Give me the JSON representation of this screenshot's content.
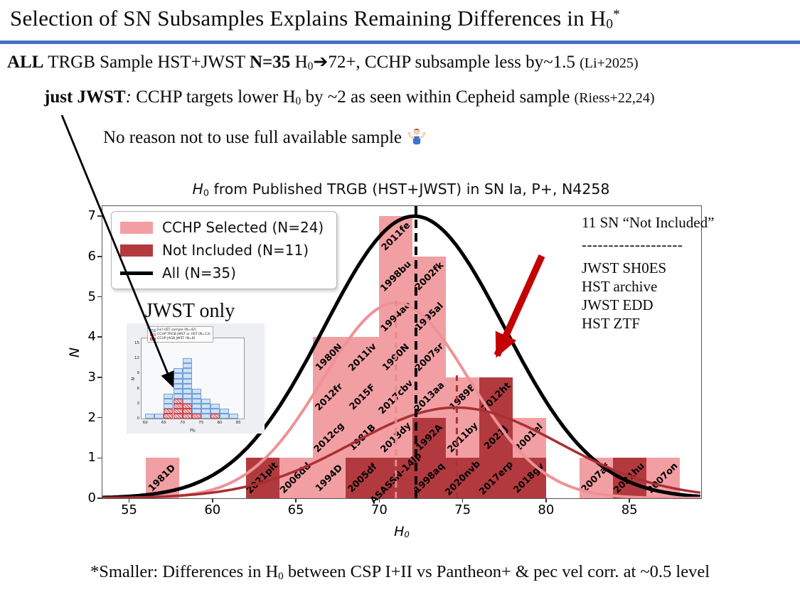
{
  "slide": {
    "accent_color": "#4472c4",
    "title": {
      "text": "Selection of SN Subsamples Explains Remaining Differences in ",
      "h": "H",
      "sub": "0",
      "star": "*"
    },
    "line1": {
      "b1": "ALL",
      "t1": " TRGB Sample HST+JWST ",
      "b2": "N=35",
      "t2": " H",
      "sub": "0",
      "arrow": "➔",
      "t3": "72+, CCHP subsample less by~1.5 ",
      "ref": "(Li+2025)"
    },
    "line2": {
      "b1": "just JWST",
      "colon": ":",
      "t1": " CCHP targets lower H",
      "sub": "0",
      "t2": " by ~2 as seen within Cepheid sample ",
      "ref": "(Riess+22,24)"
    },
    "line3": {
      "text": "No reason not to use full available sample"
    },
    "footnote": {
      "t1": "*Smaller: Differences in H",
      "sub": "0",
      "t2": " between CSP I+II vs Pantheon+ & pec vel corr. at ~0.5 level"
    }
  },
  "chart_data": {
    "type": "histogram",
    "title": {
      "h": "H",
      "sub": "0",
      "rest": " from Published TRGB (HST+JWST) in SN Ia, P+, N4258"
    },
    "xlabel": {
      "h": "H",
      "sub": "0"
    },
    "ylabel": "N",
    "xlim": [
      53.4,
      89.3
    ],
    "ylim": [
      0,
      7.25
    ],
    "xticks": [
      55,
      60,
      65,
      70,
      75,
      80,
      85
    ],
    "yticks": [
      0,
      1,
      2,
      3,
      4,
      5,
      6,
      7
    ],
    "bin_width": 2,
    "grid": false,
    "legend_position": "upper-left",
    "colors": {
      "cchp": "#f29fa3",
      "not_included": "#b23a3e",
      "all_curve": "#000000",
      "cchp_curve": "#ee9297",
      "not_included_curve": "#aa2f33",
      "arrow_red": "#c40000"
    },
    "legend": [
      {
        "label": "CCHP Selected (N=24)",
        "swatch": "cchp"
      },
      {
        "label": "Not Included (N=11)",
        "swatch": "not_included"
      },
      {
        "label": "All (N=35)",
        "swatch": "all_curve"
      }
    ],
    "bins": [
      {
        "x0": 56,
        "cells": [
          {
            "label": "1981D",
            "group": "cchp"
          }
        ]
      },
      {
        "x0": 62,
        "cells": [
          {
            "label": "2021pit",
            "group": "not_included"
          }
        ]
      },
      {
        "x0": 64,
        "cells": [
          {
            "label": "2006dd",
            "group": "cchp"
          }
        ]
      },
      {
        "x0": 66,
        "cells": [
          {
            "label": "1994D",
            "group": "cchp"
          },
          {
            "label": "2012cg",
            "group": "cchp"
          },
          {
            "label": "2012fr",
            "group": "cchp"
          },
          {
            "label": "1980N",
            "group": "cchp"
          }
        ]
      },
      {
        "x0": 68,
        "cells": [
          {
            "label": "2005df",
            "group": "not_included"
          },
          {
            "label": "1981B",
            "group": "cchp"
          },
          {
            "label": "2015F",
            "group": "cchp"
          },
          {
            "label": "2011iv",
            "group": "cchp"
          }
        ]
      },
      {
        "x0": 70,
        "cells": [
          {
            "label": "ASASSN-14lp",
            "group": "not_included"
          },
          {
            "label": "2013dy",
            "group": "cchp"
          },
          {
            "label": "2017cbv",
            "group": "cchp"
          },
          {
            "label": "1990N",
            "group": "cchp"
          },
          {
            "label": "1994ae",
            "group": "cchp"
          },
          {
            "label": "1998bu",
            "group": "cchp"
          },
          {
            "label": "2011fe",
            "group": "cchp"
          }
        ]
      },
      {
        "x0": 72,
        "cells": [
          {
            "label": "1998aq",
            "group": "not_included"
          },
          {
            "label": "1992A",
            "group": "not_included"
          },
          {
            "label": "2013aa",
            "group": "cchp"
          },
          {
            "label": "2007sr",
            "group": "cchp"
          },
          {
            "label": "1995al",
            "group": "cchp"
          },
          {
            "label": "2002fk",
            "group": "cchp"
          }
        ]
      },
      {
        "x0": 74,
        "cells": [
          {
            "label": "2020nvb",
            "group": "not_included"
          },
          {
            "label": "2011by",
            "group": "cchp"
          },
          {
            "label": "1989B",
            "group": "cchp"
          }
        ]
      },
      {
        "x0": 76,
        "cells": [
          {
            "label": "2017erp",
            "group": "not_included"
          },
          {
            "label": "2021J",
            "group": "not_included"
          },
          {
            "label": "2012ht",
            "group": "not_included"
          }
        ]
      },
      {
        "x0": 78,
        "cells": [
          {
            "label": "2018gv",
            "group": "not_included"
          },
          {
            "label": "2001el",
            "group": "cchp"
          }
        ]
      },
      {
        "x0": 82,
        "cells": [
          {
            "label": "2007af",
            "group": "cchp"
          }
        ]
      },
      {
        "x0": 84,
        "cells": [
          {
            "label": "2021hu",
            "group": "not_included"
          }
        ]
      },
      {
        "x0": 86,
        "cells": [
          {
            "label": "2007on",
            "group": "cchp"
          }
        ]
      }
    ],
    "curves": [
      {
        "name": "All (N=35)",
        "amp": 7.0,
        "mu": 72.1,
        "sigma": 5.4,
        "color": "#000000",
        "width": 5
      },
      {
        "name": "CCHP Selected (N=24)",
        "amp": 4.85,
        "mu": 71.0,
        "sigma": 4.4,
        "color": "#ee9297",
        "width": 4
      },
      {
        "name": "Not Included (N=11)",
        "amp": 2.25,
        "mu": 74.6,
        "sigma": 6.2,
        "color": "#aa2f33",
        "width": 3.5
      }
    ],
    "vlines": [
      {
        "x": 72.2,
        "ymax": 7.25,
        "color": "#000000",
        "width": 4,
        "dash": "12,7"
      },
      {
        "x": 71.0,
        "ymax": 4.9,
        "color": "#e8898f",
        "width": 3,
        "dash": "9,6"
      },
      {
        "x": 74.65,
        "ymax": 3.05,
        "color": "#a63236",
        "width": 3,
        "dash": "9,6"
      }
    ],
    "annotation": {
      "title": "11 SN “Not Included”",
      "divider": "-------------------",
      "items": [
        "JWST SH0ES",
        "HST archive",
        "JWST EDD",
        "HST ZTF"
      ]
    },
    "inset": {
      "label": "JWST only",
      "xlabel": {
        "h": "H",
        "sub": "0"
      },
      "ylabel": "N",
      "xlim": [
        59,
        86.5
      ],
      "ylim": [
        0,
        16
      ],
      "xticks": [
        60,
        65,
        70,
        75,
        80,
        85
      ],
      "yticks": [
        0,
        3,
        6,
        9,
        12,
        15
      ],
      "bin_width": 2.5,
      "legend": [
        {
          "label": "Full HST sample (N=42)",
          "swatch": "blue"
        },
        {
          "label": "CCHP TRGB JWST or HST (N=13)",
          "swatch": "pink"
        },
        {
          "label": "CCHP JAGB JWST (N=8)",
          "swatch": "redhatch"
        }
      ],
      "columns": [
        {
          "x0": 60,
          "total": 1,
          "red": 0
        },
        {
          "x0": 62.5,
          "total": 1,
          "red": 0
        },
        {
          "x0": 65,
          "total": 5,
          "red": 2
        },
        {
          "x0": 67.5,
          "total": 10,
          "red": 4
        },
        {
          "x0": 70,
          "total": 12,
          "red": 3
        },
        {
          "x0": 72.5,
          "total": 6,
          "red": 1
        },
        {
          "x0": 75,
          "total": 4,
          "red": 0
        },
        {
          "x0": 77.5,
          "total": 3,
          "red": 1
        },
        {
          "x0": 80,
          "total": 2,
          "red": 0
        },
        {
          "x0": 82.5,
          "total": 1,
          "red": 0
        }
      ]
    }
  }
}
